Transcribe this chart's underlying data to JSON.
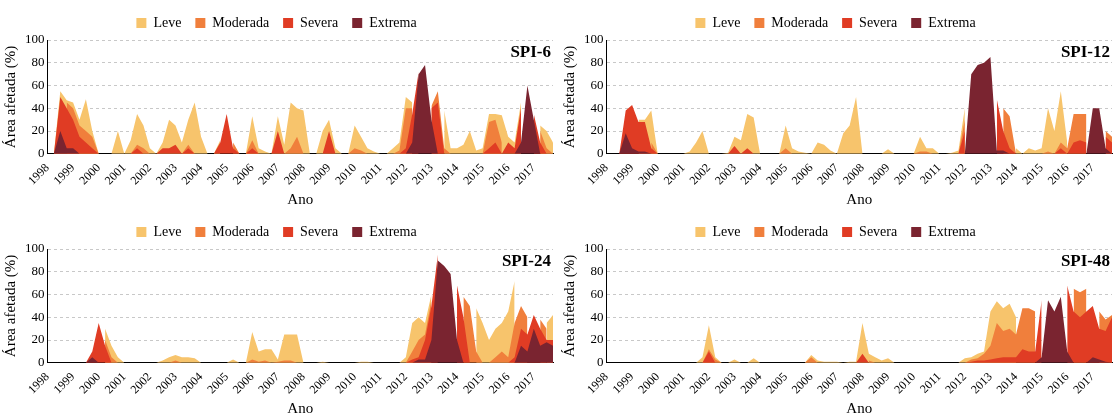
{
  "chart_data": [
    {
      "type": "area",
      "title": "SPI-6",
      "xlabel": "Ano",
      "ylabel": "Área afetada (%)",
      "legend": "top",
      "grid": "y",
      "xlim": [
        1998,
        2017.75
      ],
      "xticks": [
        1998,
        1999,
        2000,
        2001,
        2002,
        2003,
        2004,
        2005,
        2006,
        2007,
        2008,
        2009,
        2010,
        2011,
        2012,
        2013,
        2014,
        2015,
        2016,
        2017
      ],
      "ylim": [
        0,
        100
      ],
      "yticks": [
        0,
        20,
        40,
        60,
        80,
        100
      ],
      "x": [
        1998,
        1998.25,
        1998.5,
        1998.75,
        1999,
        1999.25,
        1999.5,
        1999.75,
        2000,
        2000.25,
        2000.5,
        2000.75,
        2001,
        2001.25,
        2001.5,
        2001.75,
        2002,
        2002.25,
        2002.5,
        2002.75,
        2003,
        2003.25,
        2003.5,
        2003.75,
        2004,
        2004.25,
        2004.5,
        2004.75,
        2005,
        2005.25,
        2005.5,
        2005.75,
        2006,
        2006.25,
        2006.5,
        2006.75,
        2007,
        2007.25,
        2007.5,
        2007.75,
        2008,
        2008.25,
        2008.5,
        2008.75,
        2009,
        2009.25,
        2009.5,
        2009.75,
        2010,
        2010.25,
        2010.5,
        2010.75,
        2011,
        2011.25,
        2011.5,
        2011.75,
        2012,
        2012.25,
        2012.5,
        2012.75,
        2013,
        2013.25,
        2013.5,
        2013.75,
        2014,
        2014.25,
        2014.5,
        2014.75,
        2015,
        2015.25,
        2015.5,
        2015.75,
        2016,
        2016.25,
        2016.5,
        2016.75,
        2017,
        2017.25,
        2017.5,
        2017.75
      ],
      "series": [
        {
          "name": "Leve",
          "color": "#f7c46c",
          "values": [
            0,
            0,
            55,
            47,
            45,
            30,
            48,
            20,
            0,
            0,
            0,
            20,
            0,
            12,
            35,
            25,
            5,
            0,
            10,
            30,
            25,
            10,
            30,
            45,
            15,
            0,
            0,
            12,
            null,
            null,
            0,
            0,
            33,
            5,
            2,
            0,
            33,
            8,
            45,
            40,
            38,
            0,
            0,
            20,
            30,
            5,
            0,
            0,
            25,
            15,
            5,
            2,
            0,
            0,
            5,
            10,
            50,
            45,
            null,
            null,
            null,
            null,
            38,
            5,
            5,
            8,
            20,
            3,
            5,
            35,
            35,
            34,
            15,
            10,
            45,
            null,
            null,
            25,
            20,
            10
          ]
        },
        {
          "name": "Moderada",
          "color": "#f07f3c",
          "values": [
            null,
            null,
            null,
            45,
            40,
            25,
            20,
            15,
            0,
            0,
            0,
            0,
            0,
            0,
            8,
            5,
            0,
            0,
            null,
            null,
            null,
            0,
            8,
            0,
            0,
            0,
            0,
            null,
            null,
            10,
            0,
            0,
            12,
            0,
            0,
            0,
            null,
            0,
            5,
            15,
            0,
            0,
            0,
            0,
            null,
            0,
            0,
            0,
            5,
            3,
            0,
            0,
            0,
            0,
            0,
            3,
            40,
            40,
            null,
            null,
            42,
            55,
            5,
            0,
            0,
            0,
            0,
            0,
            0,
            28,
            30,
            10,
            null,
            null,
            null,
            null,
            null,
            20,
            5,
            0
          ]
        },
        {
          "name": "Severa",
          "color": "#e03c24",
          "values": [
            0,
            0,
            50,
            40,
            30,
            15,
            10,
            5,
            0,
            0,
            0,
            0,
            0,
            0,
            5,
            0,
            0,
            0,
            5,
            5,
            8,
            0,
            5,
            0,
            0,
            0,
            0,
            10,
            35,
            5,
            0,
            0,
            5,
            0,
            0,
            0,
            20,
            0,
            0,
            0,
            0,
            0,
            0,
            0,
            20,
            0,
            0,
            0,
            0,
            0,
            0,
            0,
            0,
            0,
            0,
            0,
            5,
            35,
            72,
            null,
            40,
            45,
            0,
            0,
            0,
            0,
            0,
            0,
            0,
            5,
            10,
            0,
            10,
            5,
            40,
            null,
            35,
            10,
            0,
            0
          ]
        },
        {
          "name": "Extrema",
          "color": "#7a2430",
          "values": [
            0,
            0,
            20,
            5,
            5,
            0,
            0,
            0,
            0,
            0,
            0,
            0,
            0,
            0,
            0,
            0,
            0,
            0,
            0,
            0,
            0,
            0,
            0,
            0,
            0,
            0,
            0,
            0,
            0,
            0,
            0,
            0,
            0,
            0,
            0,
            0,
            0,
            0,
            0,
            0,
            0,
            0,
            0,
            0,
            0,
            0,
            0,
            0,
            0,
            0,
            0,
            0,
            0,
            0,
            0,
            0,
            0,
            10,
            70,
            78,
            30,
            0,
            0,
            0,
            0,
            0,
            0,
            0,
            0,
            0,
            0,
            0,
            0,
            0,
            10,
            60,
            30,
            0,
            0,
            0
          ]
        }
      ]
    },
    {
      "type": "area",
      "title": "SPI-12",
      "xlabel": "Ano",
      "ylabel": "Área afetada (%)",
      "legend": "top",
      "grid": "y",
      "xlim": [
        1998,
        2017.75
      ],
      "xticks": [
        1998,
        1999,
        2000,
        2001,
        2002,
        2003,
        2004,
        2005,
        2006,
        2007,
        2008,
        2009,
        2010,
        2011,
        2012,
        2013,
        2014,
        2015,
        2016,
        2017
      ],
      "ylim": [
        0,
        100
      ],
      "yticks": [
        0,
        20,
        40,
        60,
        80,
        100
      ],
      "x": [
        1998,
        1998.25,
        1998.5,
        1998.75,
        1999,
        1999.25,
        1999.5,
        1999.75,
        2000,
        2000.25,
        2000.5,
        2000.75,
        2001,
        2001.25,
        2001.5,
        2001.75,
        2002,
        2002.25,
        2002.5,
        2002.75,
        2003,
        2003.25,
        2003.5,
        2003.75,
        2004,
        2004.25,
        2004.5,
        2004.75,
        2005,
        2005.25,
        2005.5,
        2005.75,
        2006,
        2006.25,
        2006.5,
        2006.75,
        2007,
        2007.25,
        2007.5,
        2007.75,
        2008,
        2008.25,
        2008.5,
        2008.75,
        2009,
        2009.25,
        2009.5,
        2009.75,
        2010,
        2010.25,
        2010.5,
        2010.75,
        2011,
        2011.25,
        2011.5,
        2011.75,
        2012,
        2012.25,
        2012.5,
        2012.75,
        2013,
        2013.25,
        2013.5,
        2013.75,
        2014,
        2014.25,
        2014.5,
        2014.75,
        2015,
        2015.25,
        2015.5,
        2015.75,
        2016,
        2016.25,
        2016.5,
        2016.75,
        2017,
        2017.25,
        2017.5,
        2017.75
      ],
      "series": [
        {
          "name": "Leve",
          "color": "#f7c46c",
          "values": [
            null,
            null,
            null,
            null,
            null,
            30,
            30,
            38,
            0,
            0,
            0,
            0,
            0,
            2,
            10,
            20,
            0,
            0,
            0,
            1,
            15,
            12,
            35,
            32,
            0,
            0,
            0,
            0,
            25,
            5,
            2,
            1,
            0,
            10,
            8,
            3,
            0,
            18,
            25,
            50,
            0,
            0,
            0,
            0,
            4,
            0,
            0,
            0,
            0,
            15,
            5,
            5,
            0,
            0,
            1,
            3,
            40,
            null,
            null,
            null,
            null,
            null,
            null,
            null,
            5,
            0,
            5,
            3,
            5,
            40,
            20,
            55,
            10,
            null,
            null,
            null,
            null,
            null,
            null,
            null
          ]
        },
        {
          "name": "Moderada",
          "color": "#f07f3c",
          "values": [
            null,
            null,
            null,
            null,
            null,
            null,
            null,
            10,
            0,
            0,
            0,
            0,
            0,
            0,
            0,
            0,
            0,
            0,
            0,
            0,
            null,
            null,
            null,
            0,
            0,
            0,
            0,
            0,
            5,
            0,
            0,
            0,
            0,
            0,
            0,
            0,
            0,
            0,
            0,
            0,
            0,
            0,
            0,
            0,
            0,
            0,
            0,
            0,
            0,
            2,
            2,
            0,
            0,
            0,
            0,
            0,
            30,
            null,
            null,
            null,
            null,
            null,
            40,
            33,
            0,
            0,
            0,
            0,
            0,
            2,
            0,
            10,
            5,
            35,
            35,
            35,
            null,
            null,
            20,
            15
          ]
        },
        {
          "name": "Severa",
          "color": "#e03c24",
          "values": [
            0,
            0,
            0,
            38,
            43,
            28,
            28,
            5,
            0,
            0,
            0,
            0,
            0,
            0,
            0,
            0,
            0,
            0,
            0,
            0,
            7,
            0,
            5,
            0,
            0,
            0,
            0,
            0,
            0,
            0,
            0,
            0,
            0,
            0,
            0,
            0,
            0,
            0,
            0,
            0,
            0,
            0,
            0,
            0,
            0,
            0,
            0,
            0,
            0,
            0,
            0,
            0,
            0,
            0,
            0,
            0,
            20,
            null,
            null,
            null,
            null,
            48,
            20,
            5,
            0,
            0,
            0,
            0,
            0,
            0,
            0,
            5,
            0,
            10,
            12,
            10,
            null,
            null,
            15,
            10
          ]
        },
        {
          "name": "Extrema",
          "color": "#7a2430",
          "values": [
            0,
            0,
            0,
            18,
            5,
            2,
            2,
            0,
            0,
            0,
            0,
            0,
            0,
            0,
            0,
            0,
            0,
            0,
            0,
            0,
            0,
            0,
            0,
            0,
            0,
            0,
            0,
            0,
            0,
            0,
            0,
            0,
            0,
            0,
            0,
            0,
            0,
            0,
            0,
            0,
            0,
            0,
            0,
            0,
            0,
            0,
            0,
            0,
            0,
            0,
            0,
            0,
            0,
            0,
            0,
            0,
            0,
            70,
            78,
            80,
            85,
            3,
            3,
            0,
            0,
            0,
            0,
            0,
            0,
            0,
            0,
            0,
            0,
            0,
            0,
            0,
            40,
            40,
            5,
            0
          ]
        }
      ]
    },
    {
      "type": "area",
      "title": "SPI-24",
      "xlabel": "Ano",
      "ylabel": "Área afetada (%)",
      "legend": "top",
      "grid": "y",
      "xlim": [
        1998,
        2017.75
      ],
      "xticks": [
        1998,
        1999,
        2000,
        2001,
        2002,
        2003,
        2004,
        2005,
        2006,
        2007,
        2008,
        2009,
        2010,
        2011,
        2012,
        2013,
        2014,
        2015,
        2016,
        2017
      ],
      "ylim": [
        0,
        100
      ],
      "yticks": [
        0,
        20,
        40,
        60,
        80,
        100
      ],
      "x": [
        1998,
        1998.25,
        1998.5,
        1998.75,
        1999,
        1999.25,
        1999.5,
        1999.75,
        2000,
        2000.25,
        2000.5,
        2000.75,
        2001,
        2001.25,
        2001.5,
        2001.75,
        2002,
        2002.25,
        2002.5,
        2002.75,
        2003,
        2003.25,
        2003.5,
        2003.75,
        2004,
        2004.25,
        2004.5,
        2004.75,
        2005,
        2005.25,
        2005.5,
        2005.75,
        2006,
        2006.25,
        2006.5,
        2006.75,
        2007,
        2007.25,
        2007.5,
        2007.75,
        2008,
        2008.25,
        2008.5,
        2008.75,
        2009,
        2009.25,
        2009.5,
        2009.75,
        2010,
        2010.25,
        2010.5,
        2010.75,
        2011,
        2011.25,
        2011.5,
        2011.75,
        2012,
        2012.25,
        2012.5,
        2012.75,
        2013,
        2013.25,
        2013.5,
        2013.75,
        2014,
        2014.25,
        2014.5,
        2014.75,
        2015,
        2015.25,
        2015.5,
        2015.75,
        2016,
        2016.25,
        2016.5,
        2016.75,
        2017,
        2017.25,
        2017.5,
        2017.75
      ],
      "series": [
        {
          "name": "Leve",
          "color": "#f7c46c",
          "values": [
            null,
            null,
            null,
            null,
            null,
            null,
            null,
            null,
            null,
            30,
            15,
            5,
            0,
            0,
            0,
            0,
            0,
            0,
            2,
            5,
            7,
            5,
            5,
            4,
            0,
            0,
            0,
            0,
            0,
            3,
            0,
            0,
            27,
            10,
            12,
            12,
            3,
            25,
            25,
            25,
            0,
            0,
            0,
            1,
            0,
            0,
            0,
            0,
            0,
            1,
            1,
            0,
            0,
            0,
            0,
            0,
            5,
            35,
            40,
            35,
            60,
            null,
            null,
            null,
            null,
            null,
            null,
            48,
            35,
            20,
            30,
            35,
            45,
            72,
            null,
            null,
            null,
            null,
            35,
            42
          ]
        },
        {
          "name": "Moderada",
          "color": "#f07f3c",
          "values": [
            null,
            null,
            null,
            null,
            null,
            null,
            null,
            null,
            null,
            20,
            5,
            0,
            0,
            0,
            0,
            0,
            0,
            0,
            0,
            0,
            2,
            0,
            0,
            0,
            0,
            0,
            0,
            0,
            0,
            0,
            0,
            0,
            3,
            1,
            2,
            0,
            1,
            2,
            2,
            0,
            0,
            0,
            0,
            0,
            0,
            0,
            0,
            0,
            0,
            0,
            0,
            0,
            0,
            0,
            0,
            0,
            0,
            10,
            20,
            25,
            55,
            null,
            null,
            null,
            null,
            58,
            50,
            10,
            0,
            0,
            5,
            10,
            5,
            35,
            50,
            40,
            null,
            38,
            30,
            null
          ]
        },
        {
          "name": "Severa",
          "color": "#e03c24",
          "values": [
            0,
            0,
            0,
            0,
            0,
            0,
            0,
            10,
            35,
            15,
            0,
            0,
            0,
            0,
            0,
            0,
            0,
            0,
            0,
            0,
            0,
            0,
            0,
            0,
            0,
            0,
            0,
            0,
            0,
            0,
            0,
            0,
            0,
            0,
            0,
            0,
            0,
            0,
            0,
            0,
            0,
            0,
            0,
            0,
            0,
            0,
            0,
            0,
            0,
            0,
            0,
            0,
            0,
            0,
            0,
            0,
            0,
            3,
            5,
            20,
            50,
            95,
            null,
            null,
            68,
            40,
            0,
            0,
            0,
            0,
            0,
            0,
            0,
            5,
            30,
            25,
            42,
            30,
            20,
            20
          ]
        },
        {
          "name": "Extrema",
          "color": "#7a2430",
          "values": [
            0,
            0,
            0,
            0,
            0,
            0,
            0,
            5,
            0,
            0,
            0,
            0,
            0,
            0,
            0,
            0,
            0,
            0,
            0,
            0,
            0,
            0,
            0,
            0,
            0,
            0,
            0,
            0,
            0,
            0,
            0,
            0,
            0,
            0,
            0,
            0,
            0,
            0,
            0,
            0,
            0,
            0,
            0,
            0,
            0,
            0,
            0,
            0,
            0,
            0,
            0,
            0,
            0,
            0,
            0,
            0,
            0,
            0,
            3,
            3,
            20,
            90,
            85,
            78,
            20,
            0,
            0,
            0,
            0,
            0,
            0,
            0,
            0,
            0,
            15,
            10,
            30,
            15,
            18,
            15
          ]
        }
      ]
    },
    {
      "type": "area",
      "title": "SPI-48",
      "xlabel": "Ano",
      "ylabel": "Área afetada (%)",
      "legend": "top",
      "grid": "y",
      "xlim": [
        1998,
        2017.75
      ],
      "xticks": [
        1998,
        1999,
        2000,
        2001,
        2002,
        2003,
        2004,
        2005,
        2006,
        2007,
        2008,
        2009,
        2010,
        2011,
        2012,
        2013,
        2014,
        2015,
        2016,
        2017
      ],
      "ylim": [
        0,
        100
      ],
      "yticks": [
        0,
        20,
        40,
        60,
        80,
        100
      ],
      "x": [
        1998,
        1998.25,
        1998.5,
        1998.75,
        1999,
        1999.25,
        1999.5,
        1999.75,
        2000,
        2000.25,
        2000.5,
        2000.75,
        2001,
        2001.25,
        2001.5,
        2001.75,
        2002,
        2002.25,
        2002.5,
        2002.75,
        2003,
        2003.25,
        2003.5,
        2003.75,
        2004,
        2004.25,
        2004.5,
        2004.75,
        2005,
        2005.25,
        2005.5,
        2005.75,
        2006,
        2006.25,
        2006.5,
        2006.75,
        2007,
        2007.25,
        2007.5,
        2007.75,
        2008,
        2008.25,
        2008.5,
        2008.75,
        2009,
        2009.25,
        2009.5,
        2009.75,
        2010,
        2010.25,
        2010.5,
        2010.75,
        2011,
        2011.25,
        2011.5,
        2011.75,
        2012,
        2012.25,
        2012.5,
        2012.75,
        2013,
        2013.25,
        2013.5,
        2013.75,
        2014,
        2014.25,
        2014.5,
        2014.75,
        2015,
        2015.25,
        2015.5,
        2015.75,
        2016,
        2016.25,
        2016.5,
        2016.75,
        2017,
        2017.25,
        2017.5,
        2017.75
      ],
      "series": [
        {
          "name": "Leve",
          "color": "#f7c46c",
          "values": [
            0,
            0,
            0,
            0,
            0,
            0,
            0,
            0,
            0,
            0,
            0,
            0,
            0,
            0,
            0,
            5,
            33,
            5,
            0,
            0,
            3,
            0,
            0,
            4,
            0,
            0,
            0,
            0,
            0,
            0,
            0,
            0,
            7,
            2,
            1,
            1,
            1,
            0,
            1,
            1,
            35,
            8,
            5,
            2,
            4,
            0,
            0,
            0,
            0,
            0,
            0,
            0,
            0,
            0,
            0,
            0,
            4,
            5,
            8,
            10,
            45,
            54,
            48,
            52,
            40,
            null,
            null,
            null,
            null,
            null,
            null,
            null,
            null,
            null,
            null,
            null,
            null,
            null,
            null,
            null
          ]
        },
        {
          "name": "Moderada",
          "color": "#f07f3c",
          "values": [
            0,
            0,
            0,
            0,
            0,
            0,
            0,
            0,
            0,
            0,
            0,
            0,
            0,
            0,
            0,
            0,
            12,
            3,
            0,
            0,
            0,
            0,
            0,
            0,
            0,
            0,
            0,
            0,
            0,
            0,
            0,
            0,
            5,
            0,
            0,
            0,
            0,
            0,
            0,
            0,
            null,
            2,
            0,
            0,
            0,
            0,
            0,
            0,
            0,
            0,
            0,
            0,
            0,
            0,
            0,
            0,
            0,
            3,
            4,
            8,
            15,
            35,
            28,
            30,
            25,
            48,
            48,
            45,
            null,
            null,
            null,
            null,
            null,
            65,
            62,
            65,
            null,
            45,
            38,
            42
          ]
        },
        {
          "name": "Severa",
          "color": "#e03c24",
          "values": [
            0,
            0,
            0,
            0,
            0,
            0,
            0,
            0,
            0,
            0,
            0,
            0,
            0,
            0,
            0,
            0,
            10,
            0,
            0,
            0,
            0,
            0,
            0,
            0,
            0,
            0,
            0,
            0,
            0,
            0,
            0,
            0,
            0,
            0,
            0,
            0,
            0,
            0,
            0,
            0,
            8,
            0,
            0,
            0,
            0,
            0,
            0,
            0,
            0,
            0,
            0,
            0,
            0,
            0,
            0,
            0,
            0,
            1,
            2,
            2,
            3,
            4,
            5,
            5,
            5,
            12,
            10,
            10,
            55,
            null,
            null,
            null,
            68,
            45,
            40,
            45,
            50,
            30,
            28,
            40
          ]
        },
        {
          "name": "Extrema",
          "color": "#7a2430",
          "values": [
            0,
            0,
            0,
            0,
            0,
            0,
            0,
            0,
            0,
            0,
            0,
            0,
            0,
            0,
            0,
            0,
            0,
            0,
            0,
            0,
            0,
            0,
            0,
            0,
            0,
            0,
            0,
            0,
            0,
            0,
            0,
            0,
            0,
            0,
            0,
            0,
            0,
            0,
            0,
            0,
            0,
            0,
            0,
            0,
            0,
            0,
            0,
            0,
            0,
            0,
            0,
            0,
            0,
            0,
            0,
            0,
            0,
            0,
            0,
            0,
            0,
            0,
            0,
            0,
            0,
            0,
            0,
            0,
            5,
            55,
            45,
            58,
            10,
            0,
            0,
            0,
            5,
            3,
            1,
            0
          ]
        }
      ]
    }
  ]
}
